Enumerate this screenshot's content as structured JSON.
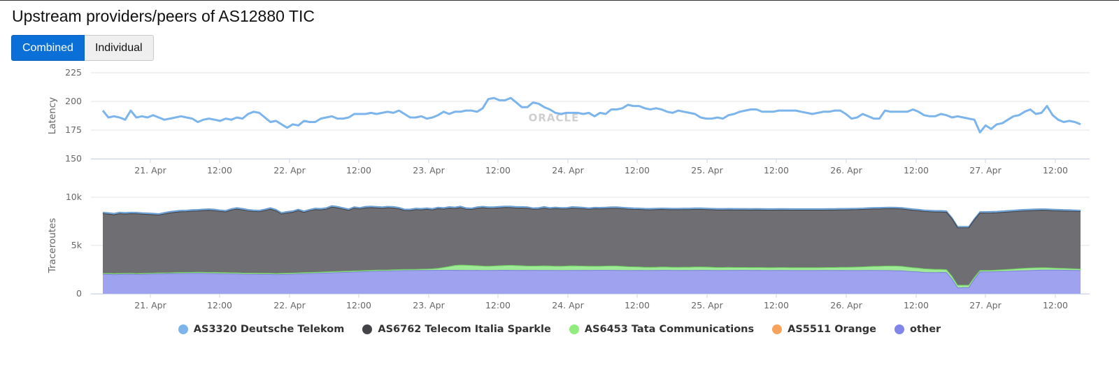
{
  "title": "Upstream providers/peers of AS12880 TIC",
  "toggle": {
    "combined_label": "Combined",
    "individual_label": "Individual",
    "active": "Combined"
  },
  "watermark": "ORACLE",
  "colors": {
    "deutsche_telekom": "#7cb5ec",
    "telecom_italia": "#434348",
    "tata": "#90ed7d",
    "orange": "#f7a35c",
    "other": "#8085e9",
    "stack_dark": "#6f6f73",
    "stack_other": "#9fa2ee",
    "stack_tata": "#9fea96"
  },
  "legend": [
    {
      "label": "AS3320 Deutsche Telekom",
      "color": "#7cb5ec"
    },
    {
      "label": "AS6762 Telecom Italia Sparkle",
      "color": "#434348"
    },
    {
      "label": "AS6453 Tata Communications",
      "color": "#90ed7d"
    },
    {
      "label": "AS5511 Orange",
      "color": "#f7a35c"
    },
    {
      "label": "other",
      "color": "#8085e9"
    }
  ],
  "chart_data": [
    {
      "type": "line",
      "ylabel": "Latency",
      "ylim": [
        150,
        225
      ],
      "yticks": [
        "225",
        "200",
        "175",
        "150"
      ],
      "ytick_values": [
        225,
        200,
        175,
        150
      ],
      "xticks": [
        "21. Apr",
        "12:00",
        "22. Apr",
        "12:00",
        "23. Apr",
        "12:00",
        "24. Apr",
        "12:00",
        "25. Apr",
        "12:00",
        "26. Apr",
        "12:00",
        "27. Apr",
        "12:00"
      ],
      "x_range_days": [
        20.34,
        27.67
      ],
      "series": [
        {
          "name": "AS3320 Deutsche Telekom",
          "values": [
            192,
            186,
            187,
            186,
            184,
            192,
            186,
            187,
            186,
            188,
            186,
            184,
            185,
            186,
            187,
            186,
            185,
            182,
            184,
            185,
            184,
            183,
            185,
            184,
            186,
            185,
            189,
            191,
            190,
            186,
            182,
            183,
            180,
            177,
            180,
            179,
            183,
            182,
            182,
            185,
            186,
            187,
            185,
            185,
            186,
            189,
            189,
            189,
            190,
            189,
            190,
            191,
            190,
            192,
            189,
            186,
            186,
            187,
            185,
            186,
            188,
            191,
            189,
            191,
            191,
            192,
            192,
            191,
            194,
            202,
            203,
            201,
            201,
            203,
            199,
            195,
            195,
            199,
            198,
            195,
            193,
            190,
            189,
            190,
            190,
            190,
            189,
            190,
            187,
            190,
            189,
            193,
            193,
            194,
            197,
            196,
            196,
            194,
            193,
            194,
            193,
            191,
            190,
            192,
            191,
            190,
            189,
            186,
            185,
            185,
            186,
            185,
            188,
            189,
            191,
            192,
            193,
            193,
            191,
            191,
            191,
            192,
            192,
            192,
            192,
            191,
            190,
            189,
            190,
            191,
            191,
            192,
            192,
            189,
            185,
            186,
            189,
            187,
            185,
            185,
            192,
            191,
            191,
            191,
            191,
            193,
            191,
            188,
            187,
            187,
            189,
            188,
            186,
            187,
            186,
            185,
            184,
            173,
            179,
            176,
            180,
            181,
            184,
            187,
            188,
            191,
            193,
            189,
            190,
            196,
            188,
            184,
            182,
            183,
            182,
            180
          ]
        }
      ]
    },
    {
      "type": "area",
      "stacked": true,
      "ylabel": "Traceroutes",
      "ylim": [
        0,
        10000
      ],
      "yticks": [
        "10k",
        "5k",
        "0"
      ],
      "ytick_values": [
        10000,
        5000,
        0
      ],
      "xticks": [
        "21. Apr",
        "12:00",
        "22. Apr",
        "12:00",
        "23. Apr",
        "12:00",
        "24. Apr",
        "12:00",
        "25. Apr",
        "12:00",
        "26. Apr",
        "12:00",
        "27. Apr",
        "12:00"
      ],
      "x_range_days": [
        20.34,
        27.67
      ],
      "series": [
        {
          "name": "other",
          "values": [
            2000,
            2000,
            1980,
            2000,
            2010,
            2020,
            1990,
            2000,
            2020,
            2040,
            2050,
            2060,
            2070,
            2080,
            2090,
            2100,
            2100,
            2110,
            2100,
            2080,
            2090,
            2060,
            2060,
            2050,
            2050,
            2020,
            2010,
            2010,
            2000,
            2000,
            1990,
            1970,
            1990,
            2000,
            2020,
            2040,
            2060,
            2080,
            2100,
            2120,
            2140,
            2160,
            2180,
            2200,
            2220,
            2240,
            2260,
            2280,
            2300,
            2320,
            2330,
            2340,
            2360,
            2380,
            2400,
            2400,
            2400,
            2410,
            2410,
            2420,
            2420,
            2420,
            2420,
            2430,
            2420,
            2410,
            2410,
            2420,
            2400,
            2400,
            2410,
            2420,
            2430,
            2420,
            2410,
            2420,
            2410,
            2420,
            2410,
            2410,
            2410,
            2410,
            2400,
            2400,
            2410,
            2410,
            2420,
            2410,
            2420,
            2420,
            2420,
            2420,
            2410,
            2410,
            2400,
            2400,
            2410,
            2400,
            2400,
            2410,
            2420,
            2420,
            2410,
            2400,
            2410,
            2400,
            2410,
            2420,
            2420,
            2410,
            2400,
            2400,
            2410,
            2410,
            2420,
            2420,
            2410,
            2420,
            2410,
            2400,
            2400,
            2410,
            2410,
            2400,
            2400,
            2400,
            2400,
            2400,
            2400,
            2410,
            2410,
            2400,
            2410,
            2400,
            2400,
            2400,
            2400,
            2410,
            2410,
            2400,
            2400,
            2390,
            2380,
            2370,
            2320,
            2280,
            2250,
            2200,
            2190,
            2180,
            2200,
            2190,
            1500,
            600,
            620,
            640,
            1500,
            2250,
            2260,
            2270,
            2280,
            2300,
            2320,
            2340,
            2360,
            2380,
            2400,
            2420,
            2440,
            2450,
            2440,
            2440,
            2430,
            2420,
            2410,
            2400
          ]
        },
        {
          "name": "AS6453 Tata Communications",
          "values": [
            100,
            100,
            100,
            100,
            100,
            100,
            100,
            100,
            100,
            100,
            100,
            100,
            100,
            110,
            110,
            110,
            110,
            120,
            120,
            120,
            120,
            120,
            120,
            120,
            120,
            120,
            120,
            120,
            120,
            120,
            120,
            120,
            120,
            120,
            120,
            120,
            120,
            120,
            120,
            120,
            120,
            120,
            120,
            120,
            120,
            120,
            120,
            120,
            120,
            120,
            120,
            120,
            120,
            120,
            120,
            120,
            120,
            130,
            140,
            160,
            200,
            300,
            400,
            500,
            550,
            550,
            520,
            480,
            460,
            450,
            460,
            480,
            500,
            520,
            500,
            480,
            450,
            440,
            460,
            480,
            460,
            440,
            450,
            460,
            480,
            460,
            440,
            440,
            430,
            430,
            440,
            450,
            460,
            420,
            400,
            380,
            360,
            340,
            330,
            340,
            350,
            340,
            330,
            330,
            340,
            350,
            360,
            350,
            340,
            330,
            320,
            320,
            320,
            310,
            300,
            300,
            300,
            300,
            300,
            300,
            300,
            300,
            300,
            300,
            300,
            300,
            300,
            300,
            300,
            300,
            310,
            320,
            330,
            340,
            350,
            360,
            380,
            400,
            420,
            440,
            460,
            480,
            480,
            460,
            440,
            420,
            400,
            380,
            360,
            340,
            320,
            300,
            300,
            280,
            260,
            240,
            200,
            160,
            150,
            150,
            160,
            180,
            200,
            220,
            240,
            260,
            260,
            260,
            260,
            240,
            220,
            200,
            190,
            180,
            170,
            160
          ]
        },
        {
          "name": "AS6762 Telecom Italia Sparkle",
          "values": [
            6200,
            6150,
            6100,
            6200,
            6150,
            6180,
            6200,
            6150,
            6100,
            6050,
            6000,
            6100,
            6200,
            6250,
            6300,
            6300,
            6350,
            6350,
            6400,
            6450,
            6400,
            6350,
            6300,
            6500,
            6600,
            6550,
            6450,
            6400,
            6380,
            6500,
            6650,
            6500,
            6150,
            6250,
            6300,
            6450,
            6250,
            6400,
            6500,
            6450,
            6500,
            6700,
            6600,
            6450,
            6300,
            6500,
            6400,
            6500,
            6500,
            6450,
            6400,
            6450,
            6400,
            6300,
            6100,
            6100,
            6200,
            6150,
            6200,
            6100,
            6200,
            6050,
            6050,
            5900,
            5950,
            5800,
            5800,
            5950,
            6050,
            6000,
            5990,
            6000,
            6000,
            5980,
            5970,
            5980,
            6000,
            5890,
            5900,
            5990,
            5900,
            5980,
            5930,
            5920,
            5980,
            5970,
            5950,
            5900,
            5960,
            5950,
            5960,
            5980,
            5980,
            5980,
            5970,
            5960,
            5960,
            5960,
            5960,
            5960,
            5960,
            5960,
            5960,
            5970,
            5970,
            5970,
            5970,
            5970,
            5960,
            5960,
            5960,
            5960,
            5960,
            5960,
            5960,
            5960,
            5960,
            5960,
            5960,
            5960,
            5960,
            5960,
            5960,
            5960,
            5960,
            5960,
            5960,
            5960,
            5960,
            5950,
            5950,
            5950,
            5950,
            5950,
            5950,
            5950,
            5950,
            5950,
            5950,
            5950,
            5950,
            5950,
            5950,
            5950,
            5950,
            5950,
            5950,
            5950,
            5950,
            5950,
            5950,
            5950,
            5950,
            5950,
            5950,
            5950,
            5950,
            5950,
            5950,
            5950,
            5950,
            5950,
            5950,
            5950,
            5950,
            5950,
            5950,
            5950,
            5950,
            5950,
            5950,
            5950,
            5950,
            5950,
            5950,
            5950
          ]
        },
        {
          "name": "AS3320 Deutsche Telekom",
          "values": [
            150,
            150,
            150,
            150,
            150,
            150,
            150,
            150,
            150,
            150,
            150,
            150,
            150,
            150,
            150,
            150,
            150,
            150,
            150,
            150,
            150,
            150,
            150,
            150,
            150,
            150,
            150,
            150,
            150,
            150,
            150,
            150,
            150,
            150,
            150,
            150,
            150,
            150,
            150,
            150,
            150,
            150,
            150,
            150,
            150,
            150,
            150,
            150,
            150,
            150,
            150,
            150,
            150,
            150,
            150,
            150,
            150,
            150,
            150,
            150,
            150,
            150,
            150,
            150,
            150,
            150,
            150,
            150,
            150,
            150,
            150,
            150,
            150,
            150,
            150,
            150,
            150,
            150,
            150,
            150,
            150,
            150,
            150,
            150,
            150,
            150,
            150,
            150,
            150,
            150,
            150,
            150,
            150,
            150,
            150,
            150,
            150,
            150,
            150,
            150,
            150,
            150,
            150,
            150,
            150,
            150,
            150,
            150,
            150,
            150,
            150,
            150,
            150,
            150,
            150,
            150,
            150,
            150,
            150,
            150,
            150,
            150,
            150,
            150,
            150,
            150,
            150,
            150,
            150,
            150,
            150,
            150,
            150,
            150,
            150,
            150,
            150,
            150,
            150,
            150,
            150,
            150,
            150,
            150,
            150,
            150,
            150,
            150,
            150,
            150,
            150,
            150,
            150,
            150,
            150,
            150,
            150,
            150,
            150,
            150,
            150,
            150,
            150,
            150,
            150,
            150,
            150,
            150,
            150,
            150,
            150,
            150,
            150,
            150,
            150,
            150
          ]
        }
      ],
      "totals_note_hidden": false
    }
  ]
}
